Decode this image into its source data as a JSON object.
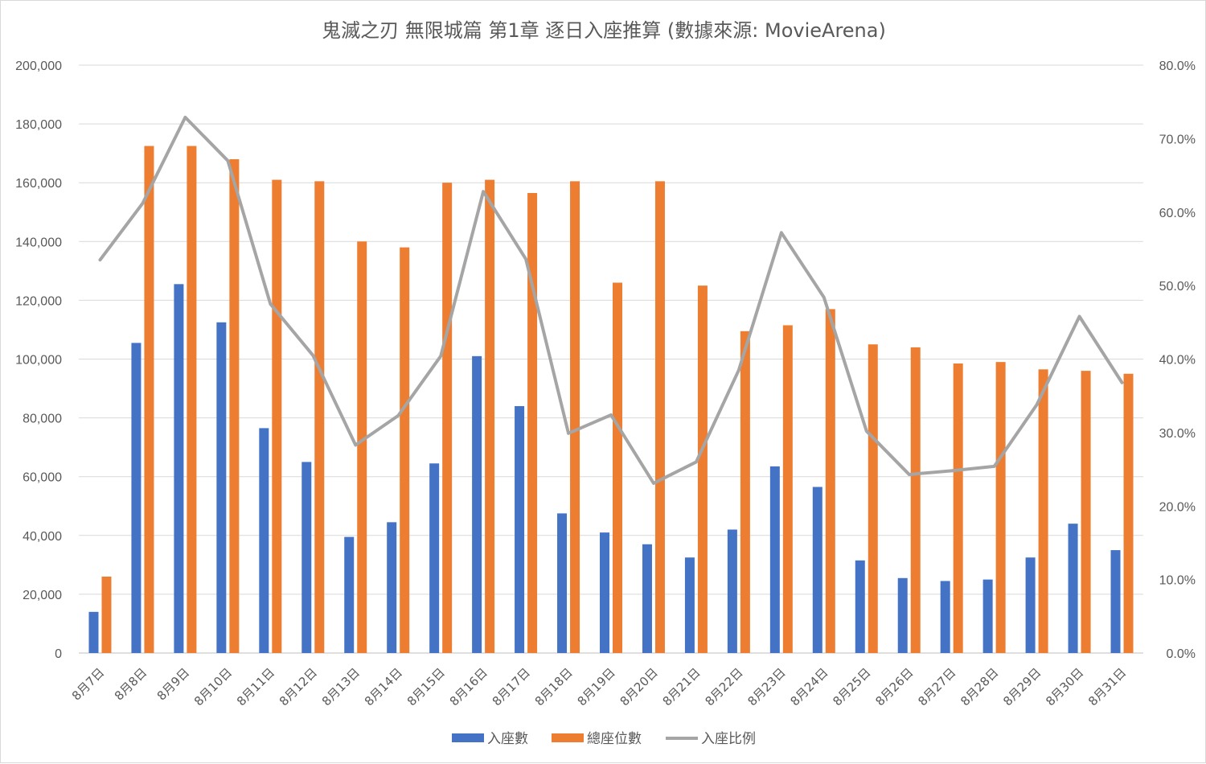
{
  "chart_data": {
    "type": "bar",
    "title": "鬼滅之刃 無限城篇 第1章 逐日入座推算 (數據來源: MovieArena)",
    "categories": [
      "8月7日",
      "8月8日",
      "8月9日",
      "8月10日",
      "8月11日",
      "8月12日",
      "8月13日",
      "8月14日",
      "8月15日",
      "8月16日",
      "8月17日",
      "8月18日",
      "8月19日",
      "8月20日",
      "8月21日",
      "8月22日",
      "8月23日",
      "8月24日",
      "8月25日",
      "8月26日",
      "8月27日",
      "8月28日",
      "8月29日",
      "8月30日",
      "8月31日"
    ],
    "series": [
      {
        "name": "入座數",
        "type": "bar",
        "axis": "left",
        "color": "#4472C4",
        "values": [
          14000,
          105500,
          125500,
          112500,
          76500,
          65000,
          39500,
          44500,
          64500,
          101000,
          84000,
          47500,
          41000,
          37000,
          32500,
          42000,
          63500,
          56500,
          31500,
          25500,
          24500,
          25000,
          32500,
          44000,
          35000
        ]
      },
      {
        "name": "總座位數",
        "type": "bar",
        "axis": "left",
        "color": "#ED7D31",
        "values": [
          26000,
          172500,
          172500,
          168000,
          161000,
          160500,
          140000,
          138000,
          160000,
          161000,
          156500,
          160500,
          126000,
          160500,
          125000,
          109500,
          111500,
          117000,
          105000,
          104000,
          98500,
          99000,
          96500,
          96000,
          95000
        ]
      },
      {
        "name": "入座比例",
        "type": "line",
        "axis": "right",
        "color": "#A5A5A5",
        "values": [
          0.535,
          0.612,
          0.729,
          0.67,
          0.475,
          0.405,
          0.283,
          0.323,
          0.404,
          0.628,
          0.536,
          0.299,
          0.324,
          0.231,
          0.26,
          0.385,
          0.572,
          0.484,
          0.302,
          0.243,
          0.248,
          0.254,
          0.338,
          0.458,
          0.368
        ]
      }
    ],
    "y_left": {
      "min": 0,
      "max": 200000,
      "step": 20000,
      "tick_labels": [
        "0",
        "20,000",
        "40,000",
        "60,000",
        "80,000",
        "100,000",
        "120,000",
        "140,000",
        "160,000",
        "180,000",
        "200,000"
      ]
    },
    "y_right": {
      "min": 0,
      "max": 0.8,
      "step": 0.1,
      "tick_labels": [
        "0.0%",
        "10.0%",
        "20.0%",
        "30.0%",
        "40.0%",
        "50.0%",
        "60.0%",
        "70.0%",
        "80.0%"
      ]
    },
    "grid": true,
    "legend_position": "bottom"
  }
}
